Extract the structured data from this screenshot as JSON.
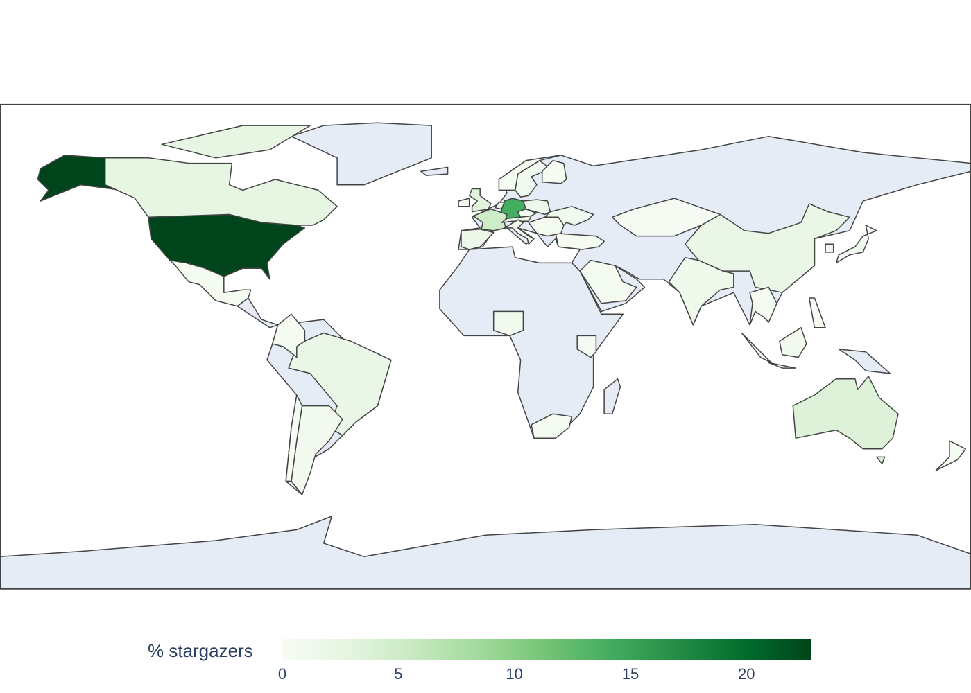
{
  "chart_data": {
    "type": "choropleth",
    "projection": "equirectangular",
    "land_color": "#e5ecf6",
    "border_color": "#444444",
    "colorscale": "Greens",
    "colorbar": {
      "title": "% stargazers",
      "range": [
        0,
        22.8
      ],
      "ticks": [
        "0",
        "5",
        "10",
        "15",
        "20"
      ],
      "placement": "bottom-horizontal"
    },
    "locations": [
      {
        "id": "USA",
        "value": 22.8
      },
      {
        "id": "DEU",
        "value": 14.0
      },
      {
        "id": "FRA",
        "value": 5.0
      },
      {
        "id": "GBR",
        "value": 3.0
      },
      {
        "id": "AUS",
        "value": 3.5
      },
      {
        "id": "CAN",
        "value": 2.5
      },
      {
        "id": "CHN",
        "value": 2.0
      },
      {
        "id": "BRA",
        "value": 2.0
      },
      {
        "id": "NLD",
        "value": 2.0
      },
      {
        "id": "ESP",
        "value": 1.5
      },
      {
        "id": "POL",
        "value": 1.5
      },
      {
        "id": "CHE_AUT",
        "value": 1.5
      },
      {
        "id": "IND",
        "value": 1.2
      },
      {
        "id": "ITA",
        "value": 1.0
      },
      {
        "id": "SWE",
        "value": 1.0
      },
      {
        "id": "CZE",
        "value": 1.0
      },
      {
        "id": "UKR",
        "value": 1.0
      },
      {
        "id": "JPN",
        "value": 1.0
      },
      {
        "id": "KOR",
        "value": 1.0
      },
      {
        "id": "ARG",
        "value": 0.8
      },
      {
        "id": "NGA",
        "value": 0.8
      },
      {
        "id": "IDN",
        "value": 0.8
      },
      {
        "id": "NOR",
        "value": 0.5
      },
      {
        "id": "FIN",
        "value": 0.5
      },
      {
        "id": "MEX",
        "value": 0.5
      },
      {
        "id": "COL",
        "value": 0.5
      },
      {
        "id": "CHL",
        "value": 0.5
      },
      {
        "id": "ZAF",
        "value": 0.5
      },
      {
        "id": "TUR",
        "value": 0.5
      },
      {
        "id": "SAU",
        "value": 0.5
      },
      {
        "id": "VNM_THA",
        "value": 0.5
      },
      {
        "id": "BALKANS",
        "value": 0.5
      },
      {
        "id": "IRL",
        "value": 0.5
      },
      {
        "id": "NZL",
        "value": 0.5
      },
      {
        "id": "KEN",
        "value": 0.3
      },
      {
        "id": "KAZ",
        "value": 0.3
      },
      {
        "id": "PHL",
        "value": 0.3
      }
    ]
  }
}
